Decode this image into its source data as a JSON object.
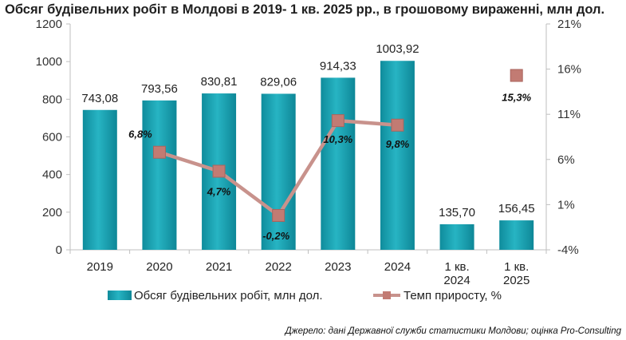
{
  "chart_data": {
    "type": "bar",
    "title": "Обсяг будівельних робіт в Молдові в 2019- 1 кв. 2025 рр., в грошовому вираженні, млн дол.",
    "categories": [
      [
        "2019"
      ],
      [
        "2020"
      ],
      [
        "2021"
      ],
      [
        "2022"
      ],
      [
        "2023"
      ],
      [
        "2024"
      ],
      [
        "1 кв.",
        "2024"
      ],
      [
        "1 кв.",
        "2025"
      ]
    ],
    "series": [
      {
        "name": "Обсяг будівельних робіт, млн дол.",
        "type": "bar",
        "axis": "left",
        "color": "#1fa3b3",
        "values": [
          743.08,
          793.56,
          830.81,
          829.06,
          914.33,
          1003.92,
          135.7,
          156.45
        ],
        "labels": [
          "743,08",
          "793,56",
          "830,81",
          "829,06",
          "914,33",
          "1003,92",
          "135,70",
          "156,45"
        ]
      },
      {
        "name": "Темп приросту, %",
        "type": "line",
        "axis": "right",
        "color": "#c8928c",
        "marker_color": "#c27b73",
        "values": [
          null,
          6.8,
          4.7,
          -0.2,
          10.3,
          9.8,
          null,
          15.3
        ],
        "labels": [
          null,
          "6,8%",
          "4,7%",
          "-0,2%",
          "10,3%",
          "9,8%",
          null,
          "15,3%"
        ],
        "break_before_index": 7
      }
    ],
    "y_left": {
      "min": 0,
      "max": 1200,
      "ticks": [
        "0",
        "200",
        "400",
        "600",
        "800",
        "1000",
        "1200"
      ]
    },
    "y_right": {
      "min": -4,
      "max": 21,
      "ticks": [
        "-4%",
        "1%",
        "6%",
        "11%",
        "16%",
        "21%"
      ]
    },
    "legend": {
      "placement": "bottom"
    },
    "source": "Джерело: дані Державної служби статистики Молдови; оцінка Pro-Consulting"
  }
}
